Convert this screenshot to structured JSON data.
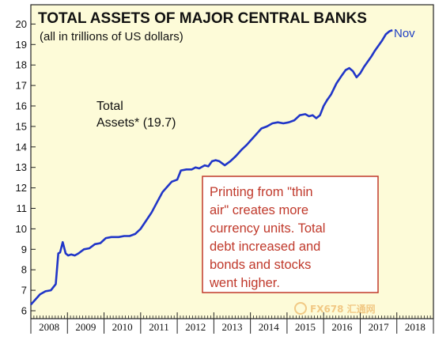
{
  "chart_data": {
    "type": "line",
    "title": "TOTAL ASSETS OF MAJOR CENTRAL BANKS",
    "subtitle": "(all in trillions of US dollars)",
    "xlabel": "",
    "ylabel": "",
    "ylim": [
      6,
      20
    ],
    "xlim": [
      2008,
      2019
    ],
    "yticks": [
      "6",
      "7",
      "8",
      "9",
      "10",
      "11",
      "12",
      "13",
      "14",
      "15",
      "16",
      "17",
      "18",
      "19",
      "20"
    ],
    "xticks": [
      "2008",
      "2009",
      "2010",
      "2011",
      "2012",
      "2013",
      "2014",
      "2015",
      "2016",
      "2017",
      "2018"
    ],
    "grid": false,
    "series": [
      {
        "name": "Total Assets* (19.7)",
        "label_line1": "Total",
        "label_line2": "Assets* (19.7)",
        "color": "#2035c8",
        "x": [
          2008.0,
          2008.1,
          2008.25,
          2008.4,
          2008.55,
          2008.68,
          2008.75,
          2008.8,
          2008.87,
          2008.95,
          2009.02,
          2009.1,
          2009.2,
          2009.3,
          2009.45,
          2009.6,
          2009.75,
          2009.9,
          2010.05,
          2010.2,
          2010.4,
          2010.55,
          2010.7,
          2010.85,
          2011.0,
          2011.15,
          2011.3,
          2011.45,
          2011.6,
          2011.75,
          2011.85,
          2012.0,
          2012.1,
          2012.25,
          2012.4,
          2012.5,
          2012.6,
          2012.75,
          2012.85,
          2012.95,
          2013.05,
          2013.15,
          2013.3,
          2013.45,
          2013.6,
          2013.75,
          2013.9,
          2014.0,
          2014.15,
          2014.3,
          2014.45,
          2014.6,
          2014.75,
          2014.9,
          2015.05,
          2015.2,
          2015.35,
          2015.5,
          2015.6,
          2015.7,
          2015.8,
          2015.9,
          2016.0,
          2016.1,
          2016.2,
          2016.35,
          2016.5,
          2016.6,
          2016.7,
          2016.8,
          2016.9,
          2017.0,
          2017.1,
          2017.2,
          2017.3,
          2017.4,
          2017.5,
          2017.6,
          2017.7,
          2017.8,
          2017.88
        ],
        "values": [
          6.3,
          6.5,
          6.8,
          6.95,
          7.0,
          7.3,
          8.8,
          8.85,
          9.35,
          8.8,
          8.7,
          8.75,
          8.7,
          8.8,
          9.0,
          9.05,
          9.25,
          9.3,
          9.55,
          9.6,
          9.6,
          9.65,
          9.65,
          9.75,
          10.0,
          10.4,
          10.8,
          11.3,
          11.8,
          12.1,
          12.3,
          12.4,
          12.85,
          12.9,
          12.9,
          13.0,
          12.95,
          13.1,
          13.05,
          13.3,
          13.35,
          13.3,
          13.1,
          13.3,
          13.55,
          13.85,
          14.1,
          14.3,
          14.6,
          14.9,
          15.0,
          15.15,
          15.2,
          15.15,
          15.2,
          15.3,
          15.55,
          15.6,
          15.5,
          15.55,
          15.4,
          15.55,
          16.0,
          16.3,
          16.55,
          17.1,
          17.5,
          17.75,
          17.85,
          17.7,
          17.4,
          17.6,
          17.9,
          18.15,
          18.4,
          18.7,
          18.95,
          19.2,
          19.5,
          19.65,
          19.7
        ]
      }
    ],
    "end_annotation": "Nov",
    "note": {
      "lines": [
        "Printing from \"thin",
        "air\" creates more",
        "currency units. Total",
        "debt increased and",
        "bonds and stocks",
        "went higher."
      ],
      "border_color": "#c0392b",
      "text_color": "#c0392b"
    },
    "background_color": "#fdfbd8"
  },
  "watermark": {
    "text": "FX678 汇通网"
  }
}
